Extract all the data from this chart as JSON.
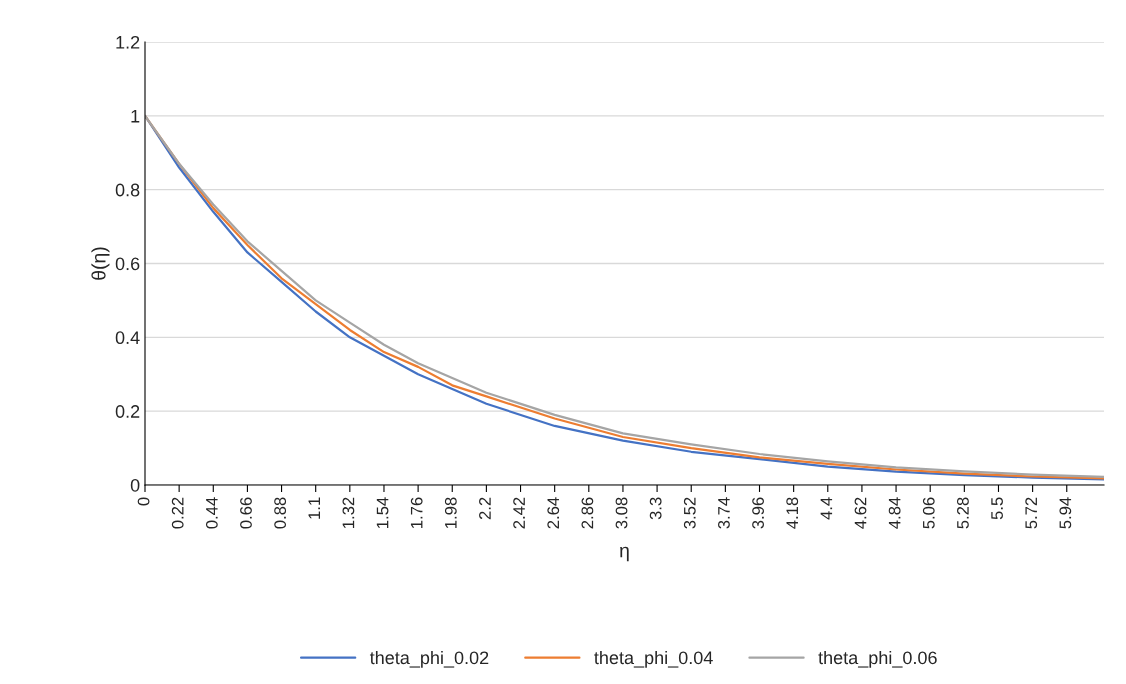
{
  "chart_data": {
    "type": "line",
    "xlabel": "η",
    "ylabel": "θ(η)",
    "x": [
      0,
      0.22,
      0.44,
      0.66,
      0.88,
      1.1,
      1.32,
      1.54,
      1.76,
      1.98,
      2.2,
      2.64,
      3.08,
      3.52,
      3.96,
      4.4,
      4.84,
      5.28,
      5.72,
      6.18
    ],
    "series": [
      {
        "name": "theta_phi_0.02",
        "color": "#4472c4",
        "values": [
          1,
          0.86,
          0.74,
          0.63,
          0.55,
          0.47,
          0.4,
          0.35,
          0.3,
          0.26,
          0.22,
          0.16,
          0.12,
          0.09,
          0.07,
          0.05,
          0.036,
          0.027,
          0.02,
          0.015
        ]
      },
      {
        "name": "theta_phi_0.04",
        "color": "#ed7d31",
        "values": [
          1,
          0.87,
          0.75,
          0.65,
          0.56,
          0.49,
          0.42,
          0.36,
          0.32,
          0.27,
          0.24,
          0.18,
          0.13,
          0.1,
          0.075,
          0.057,
          0.042,
          0.031,
          0.023,
          0.018
        ]
      },
      {
        "name": "theta_phi_0.06",
        "color": "#a5a5a5",
        "values": [
          1,
          0.87,
          0.76,
          0.66,
          0.58,
          0.5,
          0.44,
          0.38,
          0.33,
          0.29,
          0.25,
          0.19,
          0.14,
          0.11,
          0.084,
          0.064,
          0.048,
          0.037,
          0.028,
          0.022
        ]
      }
    ],
    "xlim": [
      0,
      6.18
    ],
    "xticks": [
      0,
      0.22,
      0.44,
      0.66,
      0.88,
      1.1,
      1.32,
      1.54,
      1.76,
      1.98,
      2.2,
      2.42,
      2.64,
      2.86,
      3.08,
      3.3,
      3.52,
      3.74,
      3.96,
      4.18,
      4.4,
      4.62,
      4.84,
      5.06,
      5.28,
      5.5,
      5.72,
      5.94
    ],
    "ylim": [
      0,
      1.2
    ],
    "yticks": [
      0,
      0.2,
      0.4,
      0.6,
      0.8,
      1,
      1.2
    ],
    "grid": "y",
    "legend": "bottom",
    "marker": "none",
    "line_style": "solid"
  }
}
